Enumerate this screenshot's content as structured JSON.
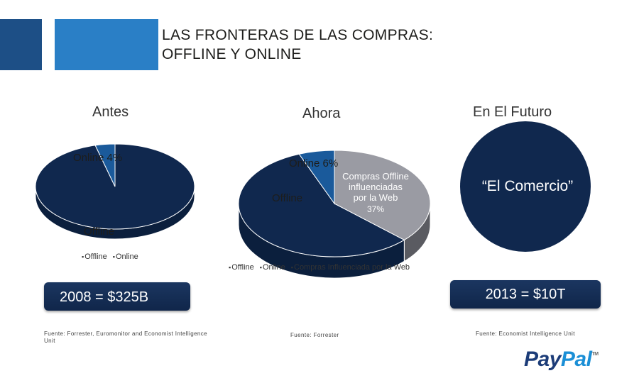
{
  "title": {
    "line1": "LAS FRONTERAS DE LAS COMPRAS:",
    "line2": "OFFLINE Y  ONLINE"
  },
  "colors": {
    "navy": "#10284e",
    "online_blue": "#1a5a9b",
    "gray": "#9a9ba3",
    "gray_side": "#5a5b61",
    "deco_dark": "#1d4f86",
    "deco_light": "#2a7fc6"
  },
  "chart_data": [
    {
      "type": "pie",
      "title": "Antes",
      "slices": [
        {
          "label": "Online 4%",
          "value": 4
        },
        {
          "label": "Offline",
          "value": 96
        }
      ],
      "legend": [
        "Offline",
        "Online"
      ],
      "total_label": "2008 = $325B",
      "source": "Fuente: Forrester, Euromonitor and Economist Intelligence Unit"
    },
    {
      "type": "pie",
      "title": "Ahora",
      "slices": [
        {
          "label": "Online 6%",
          "value": 6
        },
        {
          "label": "Compras Offline influenciadas por la Web",
          "value": 37,
          "value_label": "37%"
        },
        {
          "label": "Offline",
          "value": 57
        }
      ],
      "legend": [
        "Offline",
        "Online",
        "Compras Influenciada por la Web"
      ],
      "source": "Fuente: Forrester"
    },
    {
      "type": "pie",
      "title": "En El Futuro",
      "slices": [
        {
          "label": "“El Comercio”",
          "value": 100
        }
      ],
      "total_label": "2013 = $10T",
      "source": "Fuente: Economist Intelligence Unit"
    }
  ],
  "labels": {
    "ahora_compras_line1": "Compras Offline",
    "ahora_compras_line2": "influenciadas",
    "ahora_compras_line3": "por la Web"
  },
  "logo": {
    "part1": "Pay",
    "part2": "Pal",
    "tm": "TM"
  }
}
